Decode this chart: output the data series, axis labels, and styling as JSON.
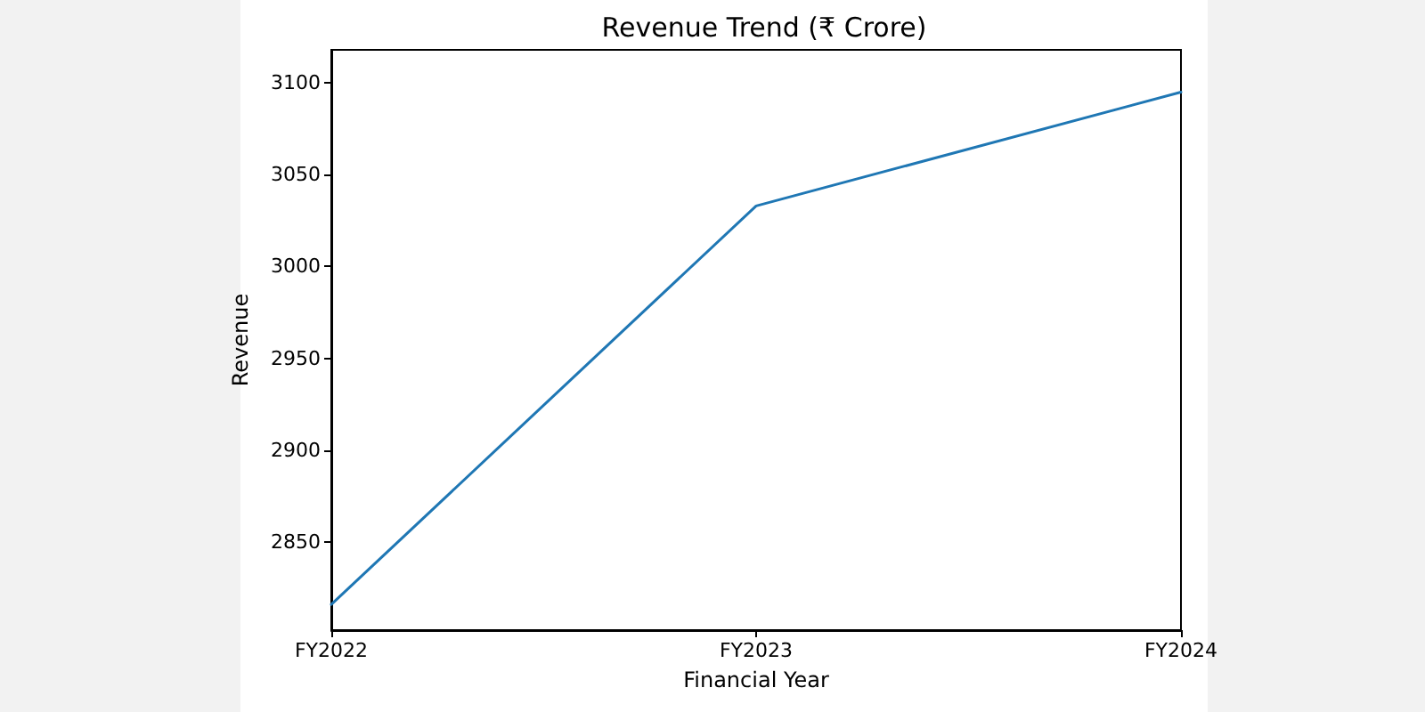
{
  "chart_data": {
    "type": "line",
    "title": "Revenue Trend (₹ Crore)",
    "xlabel": "Financial Year",
    "ylabel": "Revenue",
    "categories": [
      "FY2022",
      "FY2023",
      "FY2024"
    ],
    "series": [
      {
        "color": "#1f77b4",
        "values": [
          2816,
          3033,
          3095
        ]
      }
    ],
    "ylim": [
      2802,
      3118
    ],
    "yticks": [
      2850,
      2900,
      2950,
      3000,
      3050,
      3100
    ],
    "marker": "none",
    "line_style": "solid"
  }
}
